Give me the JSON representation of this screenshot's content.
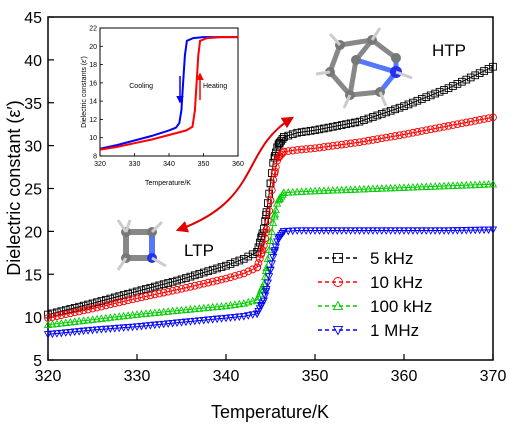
{
  "chart_data": {
    "type": "line",
    "xlabel": "Temperature/K",
    "ylabel": "Dielectric constant (ε′)",
    "xlim": [
      320,
      370
    ],
    "ylim": [
      5,
      45
    ],
    "xticks": [
      "320",
      "330",
      "340",
      "350",
      "360",
      "370"
    ],
    "yticks": [
      "5",
      "10",
      "15",
      "20",
      "25",
      "30",
      "35",
      "40",
      "45"
    ],
    "legend_position": "bottom-right",
    "series": [
      {
        "name": "5 kHz",
        "color": "#000000",
        "marker": "square",
        "points": [
          [
            320,
            10.3
          ],
          [
            325,
            11.6
          ],
          [
            330,
            13.0
          ],
          [
            335,
            14.4
          ],
          [
            340,
            16.0
          ],
          [
            342,
            16.8
          ],
          [
            343.5,
            17.6
          ],
          [
            344.3,
            20.5
          ],
          [
            344.8,
            24
          ],
          [
            345.3,
            28
          ],
          [
            345.8,
            30
          ],
          [
            346.5,
            31
          ],
          [
            348,
            31.5
          ],
          [
            350,
            31.8
          ],
          [
            355,
            32.8
          ],
          [
            360,
            34.6
          ],
          [
            365,
            36.7
          ],
          [
            370,
            39.2
          ]
        ]
      },
      {
        "name": "10 kHz",
        "color": "#ff0000",
        "marker": "circle",
        "points": [
          [
            320,
            9.9
          ],
          [
            325,
            11.0
          ],
          [
            330,
            12.2
          ],
          [
            335,
            13.3
          ],
          [
            340,
            14.5
          ],
          [
            342,
            15.1
          ],
          [
            343.5,
            15.8
          ],
          [
            344.3,
            18.5
          ],
          [
            344.8,
            22
          ],
          [
            345.3,
            26
          ],
          [
            345.8,
            28.5
          ],
          [
            346.5,
            29.3
          ],
          [
            348,
            29.5
          ],
          [
            350,
            29.7
          ],
          [
            355,
            30.4
          ],
          [
            360,
            31.3
          ],
          [
            365,
            32.3
          ],
          [
            370,
            33.3
          ]
        ]
      },
      {
        "name": "100 kHz",
        "color": "#00cc00",
        "marker": "triangle-up",
        "points": [
          [
            320,
            9.1
          ],
          [
            325,
            9.7
          ],
          [
            330,
            10.3
          ],
          [
            335,
            10.8
          ],
          [
            340,
            11.3
          ],
          [
            342,
            11.6
          ],
          [
            343.5,
            12.0
          ],
          [
            344.3,
            14
          ],
          [
            344.8,
            17.5
          ],
          [
            345.3,
            21
          ],
          [
            345.8,
            23.5
          ],
          [
            346.5,
            24.5
          ],
          [
            348,
            24.6
          ],
          [
            350,
            24.7
          ],
          [
            355,
            24.9
          ],
          [
            360,
            25.1
          ],
          [
            365,
            25.3
          ],
          [
            370,
            25.5
          ]
        ]
      },
      {
        "name": "1 MHz",
        "color": "#0000ff",
        "marker": "triangle-down",
        "points": [
          [
            320,
            8.0
          ],
          [
            325,
            8.5
          ],
          [
            330,
            8.9
          ],
          [
            335,
            9.4
          ],
          [
            340,
            9.9
          ],
          [
            342,
            10.1
          ],
          [
            343.5,
            10.4
          ],
          [
            344.3,
            12
          ],
          [
            344.8,
            14.5
          ],
          [
            345.3,
            17
          ],
          [
            345.8,
            19
          ],
          [
            346.5,
            20.0
          ],
          [
            348,
            20.1
          ],
          [
            350,
            20.1
          ],
          [
            355,
            20.1
          ],
          [
            360,
            20.1
          ],
          [
            365,
            20.1
          ],
          [
            370,
            20.2
          ]
        ]
      }
    ],
    "annotations": {
      "low_phase": "LTP",
      "high_phase": "HTP"
    },
    "inset": {
      "xlabel": "Temperature/K",
      "ylabel": "Dielectric constants (ε′)",
      "xlim": [
        320,
        360
      ],
      "ylim": [
        8,
        22
      ],
      "xticks": [
        "320",
        "330",
        "340",
        "350",
        "360"
      ],
      "yticks": [
        "8",
        "10",
        "12",
        "14",
        "16",
        "18",
        "20",
        "22"
      ],
      "series": [
        {
          "name": "Cooling",
          "color": "#0000ff",
          "points": [
            [
              320,
              8.8
            ],
            [
              325,
              9.2
            ],
            [
              330,
              9.7
            ],
            [
              335,
              10.2
            ],
            [
              340,
              10.8
            ],
            [
              342,
              11.1
            ],
            [
              343,
              11.6
            ],
            [
              343.6,
              13
            ],
            [
              344.1,
              16
            ],
            [
              344.6,
              19
            ],
            [
              345.2,
              20.6
            ],
            [
              347,
              20.9
            ],
            [
              350,
              21.0
            ],
            [
              355,
              21.0
            ],
            [
              360,
              21.0
            ]
          ]
        },
        {
          "name": "Heating",
          "color": "#ff0000",
          "points": [
            [
              320,
              8.7
            ],
            [
              325,
              9.0
            ],
            [
              330,
              9.4
            ],
            [
              335,
              9.8
            ],
            [
              340,
              10.3
            ],
            [
              345,
              10.8
            ],
            [
              346.8,
              11.2
            ],
            [
              347.5,
              13
            ],
            [
              348,
              16
            ],
            [
              348.5,
              19
            ],
            [
              349,
              20.6
            ],
            [
              351,
              20.9
            ],
            [
              355,
              21.0
            ],
            [
              360,
              21.0
            ]
          ]
        }
      ],
      "labels": {
        "cooling": "Cooling",
        "heating": "Heating"
      }
    }
  }
}
